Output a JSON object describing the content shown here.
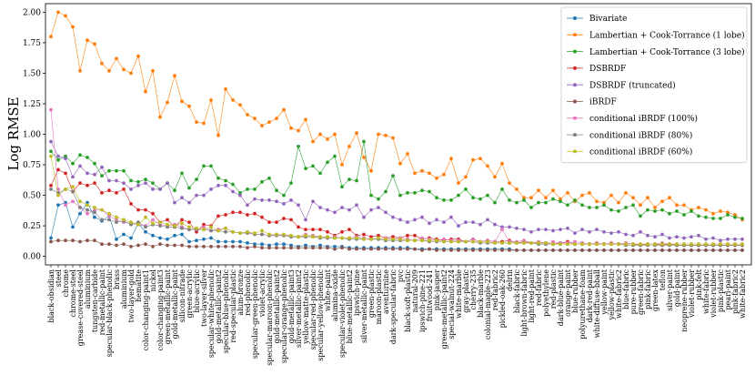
{
  "chart_data": {
    "type": "line",
    "title": "",
    "xlabel": "",
    "ylabel": "Log RMSE",
    "ylim": [
      -0.07,
      2.07
    ],
    "yticks": [
      "0.00",
      "0.25",
      "0.50",
      "0.75",
      "1.00",
      "1.25",
      "1.50",
      "1.75",
      "2.00"
    ],
    "grid": false,
    "legend_position": "top-right",
    "categories": [
      "black-obsidian",
      "steel",
      "chrome",
      "chrome-steel",
      "grease-covered-steel",
      "aluminium",
      "tungsten-carbide",
      "red-metallic-paint",
      "specular-black-phenolic",
      "brass",
      "aluminium",
      "two-layer-gold",
      "hematite",
      "color-changing-paint1",
      "nickel",
      "color-changing-paint3",
      "green-metallic-paint",
      "gold-metallic-paint",
      "silicon-nitrade",
      "green-acrylic",
      "blue-acrylic",
      "two-layer-silver",
      "specular-white-phenolic",
      "gold-metallic-paint2",
      "specular-blue-phenolic",
      "red-specular-plastic",
      "alum-bronze",
      "red-phenolic",
      "specular-green-phenolic",
      "violet-acrylic",
      "specular-maroon-phenolic",
      "gold-metallic-paint2",
      "specular-orange-phenolic",
      "gold-metallic-paint3",
      "silver-metallic-paint2",
      "yellow-matte-plastic",
      "specular-red-phenolic",
      "specular-yellow-phenolic",
      "white-paint",
      "alumina-oxide",
      "specular-violet-phenolic",
      "blue-metallic-paint2",
      "ipswich-pine",
      "silver-metallic-paint",
      "green-plastic",
      "maroon-plastic",
      "aventurnine",
      "dark-specular-fabric",
      "pvc",
      "black-soft-plastic",
      "natural-209",
      "ipswich-pine-221",
      "fruitwood-241",
      "pink-jasper",
      "green-metallic-paint2",
      "special-walnut-224",
      "white-marble",
      "gray-plastic",
      "cherry-235",
      "black-marble",
      "colonial-maple-223",
      "red-fabric2",
      "pickled-oak-260",
      "delrin",
      "black-fabric",
      "light-brown-fabric",
      "light-red-paint",
      "red-fabric",
      "polyethylene",
      "red-plastic",
      "dark-blue-paint",
      "orange-paint",
      "blue-rubber",
      "polyurethane-foam",
      "dark-red-paint",
      "white-diffuse-bball",
      "yellow-paint",
      "yellow-plastic",
      "white-fabric2",
      "blue-fabric",
      "pure-rubber",
      "green-fabric",
      "pink-fabric",
      "green-latex",
      "teflon",
      "silver-paint",
      "gold-paint",
      "neoprene-rubber",
      "violet-rubber",
      "pink-felt",
      "white-fabric",
      "violet-rubber",
      "pink-plastic",
      "pearl-paint",
      "pink-fabric2",
      "white-fabric2"
    ],
    "series": [
      {
        "name": "Bivariate",
        "color": "#1f77b4",
        "values": [
          0.15,
          0.42,
          0.44,
          0.24,
          0.35,
          0.44,
          0.32,
          0.29,
          0.33,
          0.14,
          0.18,
          0.15,
          0.27,
          0.2,
          0.17,
          0.15,
          0.14,
          0.17,
          0.18,
          0.12,
          0.13,
          0.14,
          0.15,
          0.12,
          0.12,
          0.12,
          0.12,
          0.11,
          0.1,
          0.1,
          0.09,
          0.1,
          0.1,
          0.09,
          0.08,
          0.09,
          0.08,
          0.09,
          0.08,
          0.08,
          0.08,
          0.07,
          0.07,
          0.07,
          0.07,
          0.07,
          0.07,
          0.07,
          0.07,
          0.07,
          0.06,
          0.06,
          0.06,
          0.06,
          0.06,
          0.06,
          0.06,
          0.06,
          0.06,
          0.06,
          0.06,
          0.06,
          0.06,
          0.06,
          0.05,
          0.05,
          0.05,
          0.05,
          0.05,
          0.05,
          0.05,
          0.05,
          0.05,
          0.05,
          0.05,
          0.05,
          0.05,
          0.05,
          0.05,
          0.05,
          0.05,
          0.05,
          0.05,
          0.05,
          0.05,
          0.05,
          0.05,
          0.05,
          0.05,
          0.05,
          0.05,
          0.05,
          0.05,
          0.05,
          0.05,
          0.05
        ]
      },
      {
        "name": "Lambertian + Cook-Torrance (1 lobe)",
        "color": "#ff7f0e",
        "values": [
          1.8,
          2.0,
          1.97,
          1.88,
          1.52,
          1.77,
          1.74,
          1.58,
          1.52,
          1.62,
          1.53,
          1.5,
          1.64,
          1.35,
          1.52,
          1.14,
          1.26,
          1.48,
          1.27,
          1.23,
          1.1,
          1.09,
          1.28,
          0.99,
          1.37,
          1.28,
          1.24,
          1.16,
          1.13,
          1.07,
          1.1,
          1.13,
          1.2,
          1.05,
          1.03,
          1.12,
          0.94,
          1.0,
          0.96,
          1.0,
          0.75,
          0.9,
          1.01,
          0.81,
          0.7,
          1.0,
          0.99,
          0.97,
          0.76,
          0.84,
          0.68,
          0.7,
          0.68,
          0.64,
          0.67,
          0.8,
          0.6,
          0.65,
          0.79,
          0.8,
          0.74,
          0.65,
          0.76,
          0.6,
          0.55,
          0.48,
          0.48,
          0.54,
          0.48,
          0.54,
          0.47,
          0.52,
          0.45,
          0.5,
          0.52,
          0.45,
          0.44,
          0.5,
          0.44,
          0.52,
          0.48,
          0.42,
          0.48,
          0.4,
          0.45,
          0.48,
          0.42,
          0.42,
          0.38,
          0.4,
          0.38,
          0.35,
          0.37,
          0.36,
          0.34,
          0.3
        ]
      },
      {
        "name": "Lambertian + Cook-Torrance (3 lobe)",
        "color": "#2ca02c",
        "values": [
          0.86,
          0.79,
          0.82,
          0.76,
          0.83,
          0.81,
          0.76,
          0.66,
          0.7,
          0.7,
          0.7,
          0.62,
          0.61,
          0.63,
          0.6,
          0.55,
          0.6,
          0.54,
          0.68,
          0.56,
          0.63,
          0.74,
          0.74,
          0.64,
          0.62,
          0.59,
          0.52,
          0.55,
          0.55,
          0.61,
          0.64,
          0.54,
          0.5,
          0.6,
          0.9,
          0.72,
          0.74,
          0.68,
          0.77,
          0.82,
          0.57,
          0.63,
          0.62,
          0.94,
          0.5,
          0.47,
          0.53,
          0.66,
          0.5,
          0.52,
          0.52,
          0.54,
          0.53,
          0.48,
          0.46,
          0.46,
          0.5,
          0.55,
          0.48,
          0.47,
          0.5,
          0.44,
          0.55,
          0.46,
          0.44,
          0.46,
          0.4,
          0.44,
          0.44,
          0.47,
          0.45,
          0.42,
          0.46,
          0.42,
          0.4,
          0.4,
          0.42,
          0.38,
          0.37,
          0.4,
          0.42,
          0.33,
          0.38,
          0.37,
          0.38,
          0.35,
          0.37,
          0.34,
          0.37,
          0.33,
          0.32,
          0.31,
          0.31,
          0.34,
          0.32,
          0.31
        ]
      },
      {
        "name": "DSBRDF",
        "color": "#d62728",
        "values": [
          0.58,
          0.71,
          0.68,
          0.53,
          0.6,
          0.58,
          0.6,
          0.52,
          0.54,
          0.52,
          0.55,
          0.43,
          0.38,
          0.38,
          0.35,
          0.28,
          0.3,
          0.24,
          0.3,
          0.28,
          0.2,
          0.26,
          0.25,
          0.33,
          0.34,
          0.36,
          0.36,
          0.34,
          0.35,
          0.32,
          0.28,
          0.28,
          0.31,
          0.3,
          0.24,
          0.22,
          0.22,
          0.22,
          0.2,
          0.17,
          0.2,
          0.22,
          0.17,
          0.18,
          0.16,
          0.17,
          0.15,
          0.16,
          0.15,
          0.17,
          0.17,
          0.14,
          0.15,
          0.14,
          0.13,
          0.14,
          0.14,
          0.12,
          0.14,
          0.12,
          0.13,
          0.12,
          0.12,
          0.13,
          0.11,
          0.12,
          0.11,
          0.11,
          0.11,
          0.1,
          0.11,
          0.12,
          0.1,
          0.1,
          0.1,
          0.1,
          0.1,
          0.1,
          0.1,
          0.1,
          0.1,
          0.09,
          0.1,
          0.1,
          0.09,
          0.1,
          0.09,
          0.09,
          0.09,
          0.09,
          0.09,
          0.09,
          0.09,
          0.09,
          0.09,
          0.09
        ]
      },
      {
        "name": "DSBRDF (truncated)",
        "color": "#9467bd",
        "values": [
          0.94,
          0.82,
          0.8,
          0.65,
          0.74,
          0.68,
          0.67,
          0.73,
          0.62,
          0.62,
          0.6,
          0.55,
          0.58,
          0.6,
          0.55,
          0.55,
          0.6,
          0.44,
          0.48,
          0.44,
          0.5,
          0.5,
          0.55,
          0.58,
          0.58,
          0.53,
          0.5,
          0.42,
          0.47,
          0.46,
          0.46,
          0.45,
          0.43,
          0.46,
          0.42,
          0.3,
          0.45,
          0.4,
          0.38,
          0.36,
          0.4,
          0.38,
          0.42,
          0.32,
          0.38,
          0.4,
          0.36,
          0.32,
          0.3,
          0.28,
          0.3,
          0.32,
          0.27,
          0.3,
          0.28,
          0.32,
          0.25,
          0.28,
          0.28,
          0.26,
          0.3,
          0.26,
          0.24,
          0.24,
          0.23,
          0.22,
          0.2,
          0.22,
          0.22,
          0.21,
          0.22,
          0.23,
          0.19,
          0.22,
          0.2,
          0.22,
          0.2,
          0.19,
          0.2,
          0.18,
          0.17,
          0.2,
          0.17,
          0.16,
          0.18,
          0.15,
          0.16,
          0.15,
          0.16,
          0.17,
          0.14,
          0.15,
          0.13,
          0.14,
          0.14,
          0.14
        ]
      },
      {
        "name": "iBRDF",
        "color": "#8c564b",
        "values": [
          0.12,
          0.13,
          0.13,
          0.13,
          0.12,
          0.13,
          0.13,
          0.1,
          0.1,
          0.09,
          0.1,
          0.08,
          0.09,
          0.1,
          0.08,
          0.1,
          0.09,
          0.09,
          0.09,
          0.08,
          0.08,
          0.08,
          0.08,
          0.08,
          0.08,
          0.08,
          0.08,
          0.07,
          0.08,
          0.07,
          0.07,
          0.07,
          0.07,
          0.07,
          0.07,
          0.07,
          0.07,
          0.07,
          0.07,
          0.06,
          0.07,
          0.06,
          0.06,
          0.06,
          0.06,
          0.06,
          0.06,
          0.06,
          0.06,
          0.06,
          0.06,
          0.05,
          0.06,
          0.05,
          0.05,
          0.05,
          0.05,
          0.05,
          0.05,
          0.05,
          0.05,
          0.05,
          0.05,
          0.05,
          0.05,
          0.05,
          0.05,
          0.05,
          0.05,
          0.05,
          0.05,
          0.05,
          0.05,
          0.05,
          0.05,
          0.05,
          0.05,
          0.05,
          0.05,
          0.05,
          0.05,
          0.05,
          0.05,
          0.05,
          0.05,
          0.05,
          0.05,
          0.05,
          0.05,
          0.05,
          0.05,
          0.05,
          0.05,
          0.05,
          0.05,
          0.05
        ]
      },
      {
        "name": "conditional iBRDF (100%)",
        "color": "#e377c2",
        "values": [
          1.2,
          0.55,
          0.42,
          0.45,
          0.4,
          0.35,
          0.38,
          0.38,
          0.33,
          0.3,
          0.28,
          0.27,
          0.26,
          0.25,
          0.3,
          0.26,
          0.25,
          0.26,
          0.24,
          0.22,
          0.22,
          0.24,
          0.21,
          0.22,
          0.23,
          0.2,
          0.19,
          0.2,
          0.18,
          0.18,
          0.17,
          0.18,
          0.17,
          0.17,
          0.16,
          0.18,
          0.17,
          0.16,
          0.15,
          0.16,
          0.15,
          0.15,
          0.16,
          0.15,
          0.14,
          0.14,
          0.15,
          0.14,
          0.15,
          0.14,
          0.13,
          0.15,
          0.14,
          0.13,
          0.14,
          0.13,
          0.13,
          0.12,
          0.14,
          0.12,
          0.13,
          0.12,
          0.22,
          0.12,
          0.12,
          0.13,
          0.11,
          0.12,
          0.11,
          0.12,
          0.11,
          0.11,
          0.12,
          0.11,
          0.1,
          0.11,
          0.1,
          0.11,
          0.1,
          0.11,
          0.1,
          0.1,
          0.1,
          0.1,
          0.11,
          0.1,
          0.1,
          0.1,
          0.1,
          0.1,
          0.1,
          0.1,
          0.1,
          0.1,
          0.1,
          0.1
        ]
      },
      {
        "name": "conditional iBRDF (80%)",
        "color": "#7f7f7f",
        "values": [
          0.55,
          0.52,
          0.55,
          0.53,
          0.4,
          0.38,
          0.36,
          0.3,
          0.3,
          0.28,
          0.29,
          0.26,
          0.28,
          0.24,
          0.26,
          0.25,
          0.24,
          0.24,
          0.23,
          0.22,
          0.22,
          0.22,
          0.21,
          0.21,
          0.2,
          0.2,
          0.19,
          0.19,
          0.18,
          0.18,
          0.17,
          0.17,
          0.17,
          0.16,
          0.16,
          0.16,
          0.16,
          0.15,
          0.15,
          0.15,
          0.15,
          0.14,
          0.14,
          0.14,
          0.14,
          0.14,
          0.13,
          0.13,
          0.13,
          0.13,
          0.13,
          0.13,
          0.12,
          0.12,
          0.12,
          0.12,
          0.12,
          0.12,
          0.12,
          0.11,
          0.11,
          0.11,
          0.11,
          0.11,
          0.11,
          0.11,
          0.11,
          0.1,
          0.1,
          0.1,
          0.1,
          0.1,
          0.1,
          0.1,
          0.1,
          0.1,
          0.1,
          0.1,
          0.1,
          0.09,
          0.09,
          0.09,
          0.09,
          0.09,
          0.09,
          0.09,
          0.09,
          0.09,
          0.09,
          0.09,
          0.09,
          0.09,
          0.09,
          0.09,
          0.09,
          0.09
        ]
      },
      {
        "name": "conditional iBRDF (60%)",
        "color": "#bcbd22",
        "values": [
          0.82,
          0.5,
          0.55,
          0.57,
          0.45,
          0.42,
          0.4,
          0.38,
          0.35,
          0.32,
          0.3,
          0.28,
          0.26,
          0.32,
          0.27,
          0.28,
          0.26,
          0.25,
          0.27,
          0.24,
          0.23,
          0.22,
          0.24,
          0.21,
          0.23,
          0.2,
          0.19,
          0.2,
          0.19,
          0.21,
          0.18,
          0.18,
          0.18,
          0.17,
          0.16,
          0.17,
          0.16,
          0.16,
          0.16,
          0.15,
          0.15,
          0.15,
          0.15,
          0.14,
          0.14,
          0.15,
          0.14,
          0.14,
          0.14,
          0.13,
          0.13,
          0.13,
          0.13,
          0.13,
          0.12,
          0.12,
          0.12,
          0.12,
          0.12,
          0.12,
          0.12,
          0.11,
          0.11,
          0.11,
          0.11,
          0.11,
          0.11,
          0.11,
          0.11,
          0.1,
          0.1,
          0.1,
          0.1,
          0.1,
          0.1,
          0.1,
          0.1,
          0.1,
          0.1,
          0.1,
          0.1,
          0.1,
          0.1,
          0.1,
          0.1,
          0.1,
          0.1,
          0.1,
          0.1,
          0.1,
          0.1,
          0.1,
          0.1,
          0.1,
          0.1,
          0.1
        ]
      }
    ]
  }
}
